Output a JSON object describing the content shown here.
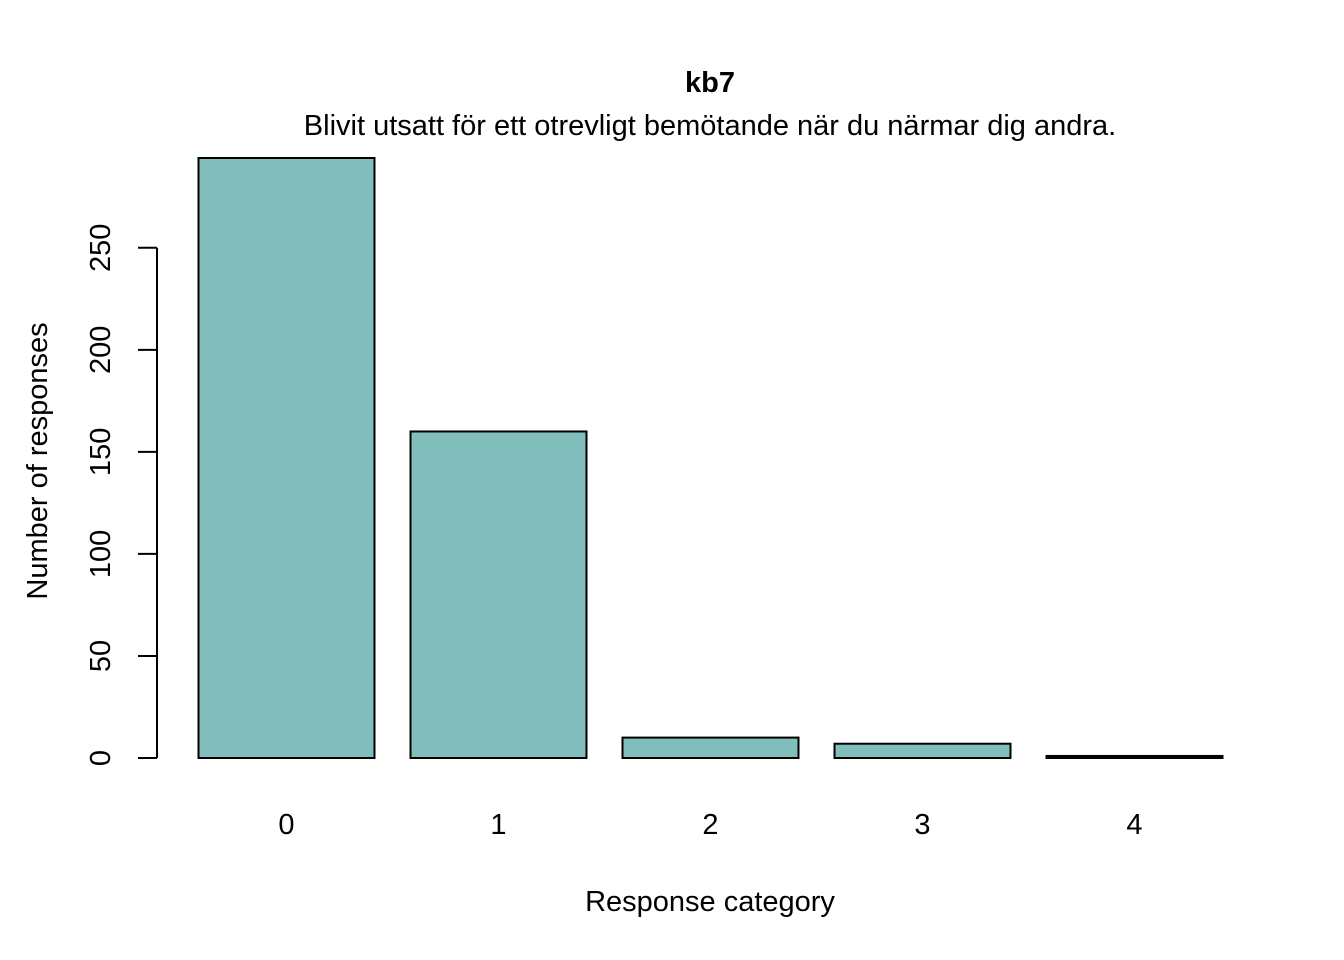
{
  "chart_data": {
    "type": "bar",
    "title": "kb7",
    "subtitle": "Blivit utsatt för ett otrevligt bemötande när du närmar dig andra.",
    "xlabel": "Response category",
    "ylabel": "Number of responses",
    "categories": [
      "0",
      "1",
      "2",
      "3",
      "4"
    ],
    "values": [
      294,
      160,
      10,
      7,
      1
    ],
    "ylim": [
      0,
      294
    ],
    "yticks": [
      0,
      50,
      100,
      150,
      200,
      250
    ],
    "bar_color": "#80BDBB",
    "grid": false,
    "legend": "none"
  }
}
